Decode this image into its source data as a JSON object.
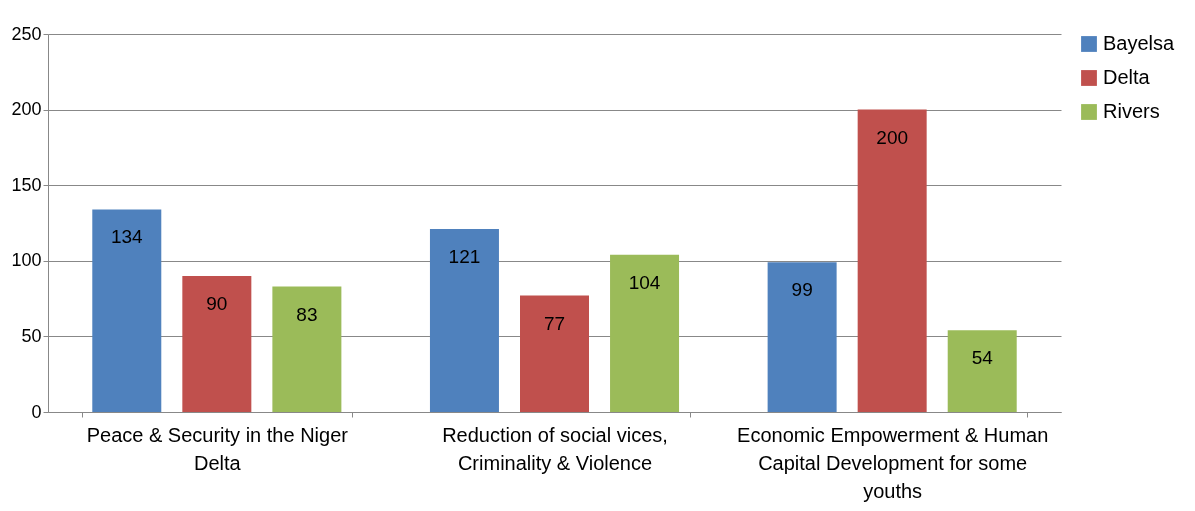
{
  "chart_data": {
    "type": "bar",
    "categories": [
      "Peace & Security in the Niger Delta",
      "Reduction of social vices, Criminality & Violence",
      "Economic Empowerment & Human Capital Development for some youths"
    ],
    "series": [
      {
        "name": "Bayelsa",
        "color": "#4f81bd",
        "values": [
          134,
          121,
          99
        ]
      },
      {
        "name": "Delta",
        "color": "#c0504d",
        "values": [
          90,
          77,
          200
        ]
      },
      {
        "name": "Rivers",
        "color": "#9bbb59",
        "values": [
          83,
          104,
          54
        ]
      }
    ],
    "ylim": [
      0,
      250
    ],
    "yticks": [
      0,
      50,
      100,
      150,
      200,
      250
    ],
    "grid": "y",
    "legend": "right",
    "data_labels": true
  }
}
